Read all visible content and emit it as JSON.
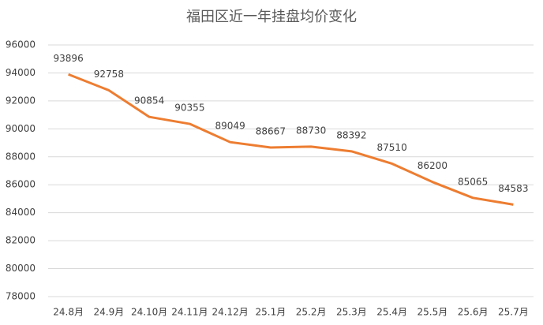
{
  "chart_data": {
    "type": "line",
    "title": "福田区近一年挂盘均价变化",
    "categories": [
      "24.8月",
      "24.9月",
      "24.10月",
      "24.11月",
      "24.12月",
      "25.1月",
      "25.2月",
      "25.3月",
      "25.4月",
      "25.5月",
      "25.6月",
      "25.7月"
    ],
    "values": [
      93896,
      92758,
      90854,
      90355,
      89049,
      88667,
      88730,
      88392,
      87510,
      86200,
      85065,
      84583
    ],
    "color": "#ED7D31",
    "ylim": [
      78000,
      96000
    ],
    "yticks": [
      78000,
      80000,
      82000,
      84000,
      86000,
      88000,
      90000,
      92000,
      94000,
      96000
    ],
    "grid": true
  }
}
